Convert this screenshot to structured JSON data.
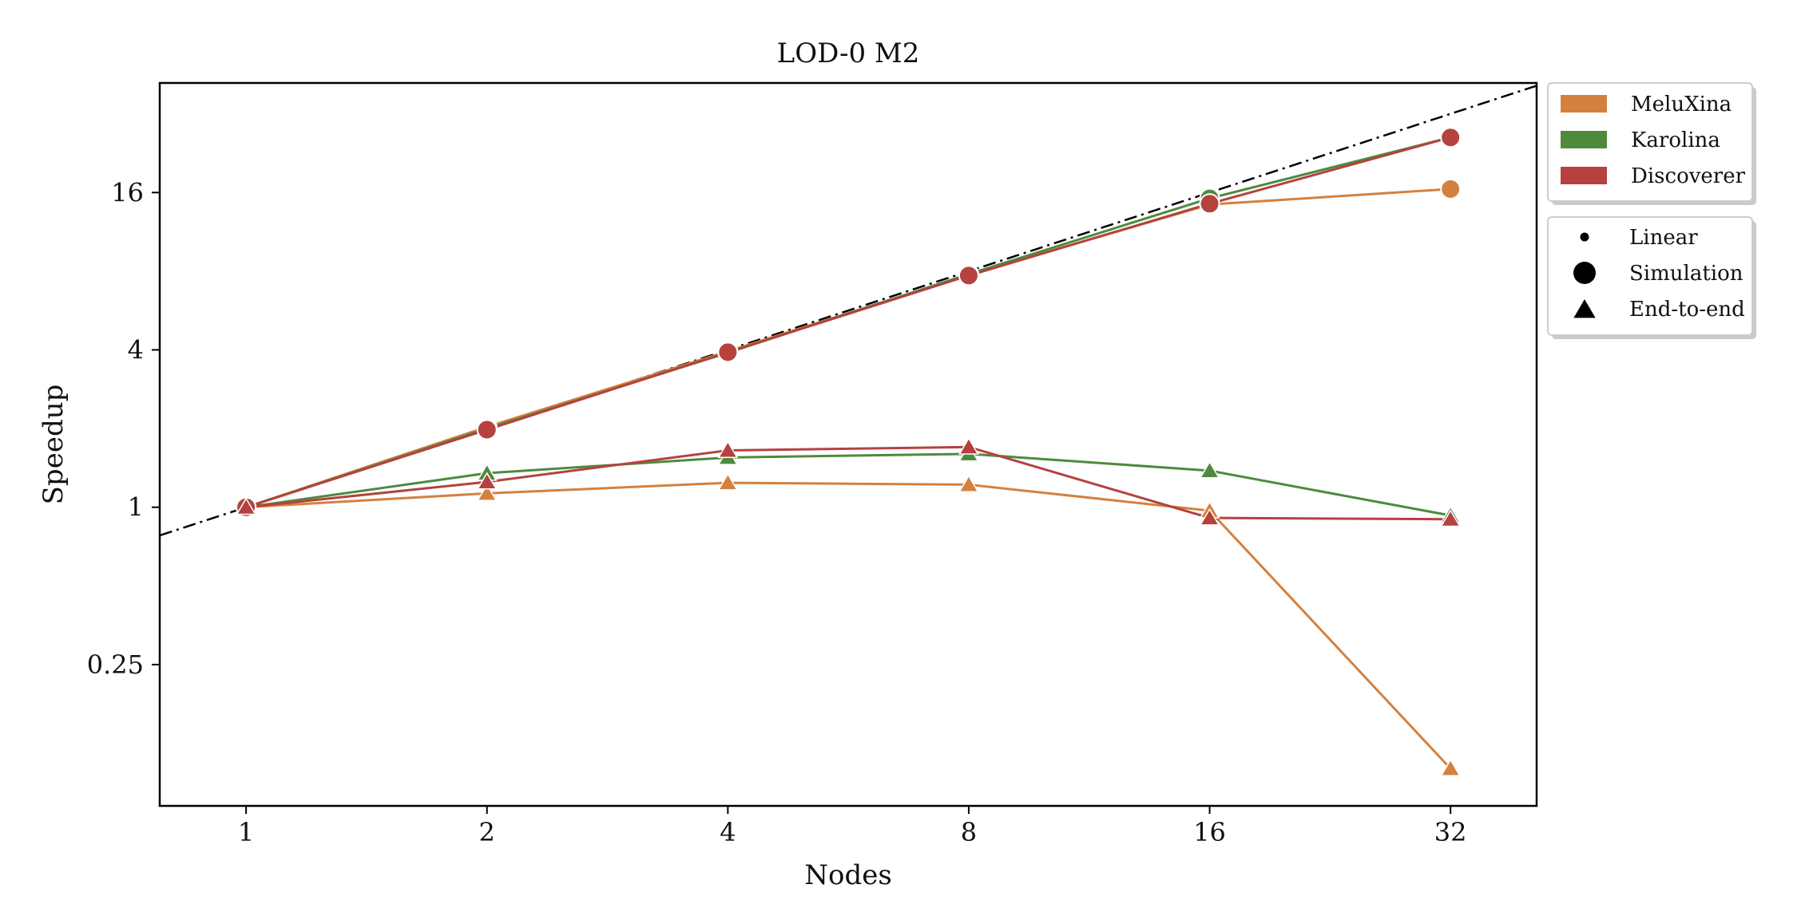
{
  "chart_data": {
    "type": "line",
    "title": "LOD-0 M2",
    "xlabel": "Nodes",
    "ylabel": "Speedup",
    "x_scale": "log2",
    "y_scale": "log2",
    "x": [
      1,
      2,
      4,
      8,
      16,
      32
    ],
    "x_tick_labels": [
      "1",
      "2",
      "4",
      "8",
      "16",
      "32"
    ],
    "y_ticks": [
      0.25,
      1,
      4,
      16
    ],
    "y_tick_labels": [
      "0.25",
      "1",
      "4",
      "16"
    ],
    "xlim": [
      0.78,
      41
    ],
    "ylim": [
      0.072,
      42
    ],
    "grid": false,
    "reference_line": {
      "name": "Linear",
      "color": "#000000",
      "style": "dash-dot"
    },
    "series": [
      {
        "name": "MeluXina",
        "color": "#d4813f",
        "simulation": [
          1,
          2.03,
          3.95,
          7.75,
          14.4,
          16.5
        ],
        "end_to_end": [
          1,
          1.13,
          1.24,
          1.22,
          0.97,
          0.1
        ]
      },
      {
        "name": "Karolina",
        "color": "#4e8a3e",
        "simulation": [
          1,
          2.0,
          3.9,
          7.8,
          15.2,
          26.0
        ],
        "end_to_end": [
          1,
          1.35,
          1.55,
          1.6,
          1.38,
          0.93
        ]
      },
      {
        "name": "Discoverer",
        "color": "#b5423f",
        "simulation": [
          1,
          1.98,
          3.92,
          7.7,
          14.5,
          26.0
        ],
        "end_to_end": [
          1,
          1.25,
          1.65,
          1.7,
          0.91,
          0.9
        ]
      }
    ],
    "legend": {
      "placement": "outside-right-top",
      "systems": [
        "MeluXina",
        "Karolina",
        "Discoverer"
      ],
      "markers": [
        {
          "label": "Linear",
          "shape": "small-dot"
        },
        {
          "label": "Simulation",
          "shape": "circle"
        },
        {
          "label": "End-to-end",
          "shape": "triangle"
        }
      ]
    }
  }
}
